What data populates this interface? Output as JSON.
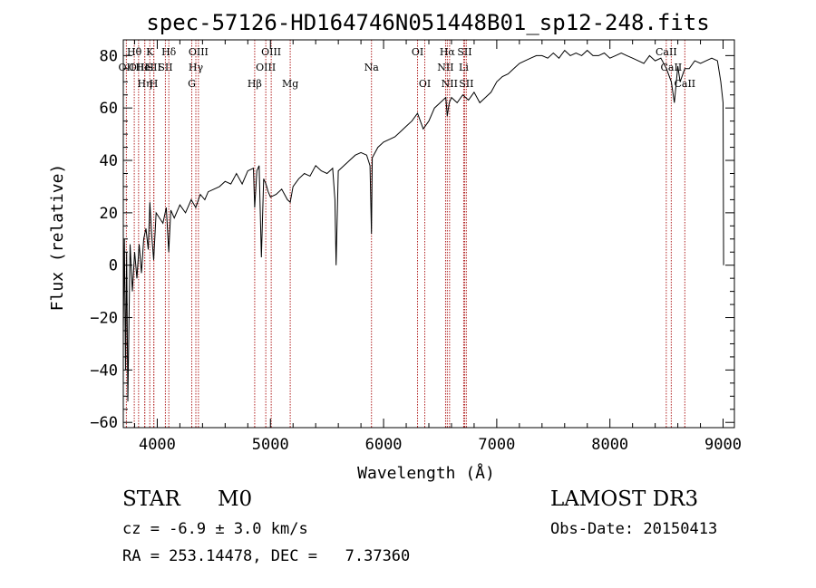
{
  "chart_data": {
    "type": "line",
    "title": "spec-57126-HD164746N051448B01_sp12-248.fits",
    "xlabel": "Wavelength (Å)",
    "ylabel": "Flux (relative)",
    "xlim": [
      3700,
      9100
    ],
    "ylim": [
      -62,
      86
    ],
    "xticks": [
      4000,
      5000,
      6000,
      7000,
      8000,
      9000
    ],
    "yticks": [
      -60,
      -40,
      -20,
      0,
      20,
      40,
      60,
      80
    ],
    "grid": false,
    "series": [
      {
        "name": "flux",
        "color": "#000000",
        "x": [
          3700,
          3710,
          3720,
          3730,
          3740,
          3760,
          3780,
          3800,
          3820,
          3840,
          3860,
          3880,
          3900,
          3920,
          3935,
          3950,
          3968,
          3990,
          4020,
          4050,
          4080,
          4101,
          4120,
          4150,
          4200,
          4250,
          4300,
          4340,
          4380,
          4420,
          4450,
          4500,
          4550,
          4600,
          4650,
          4700,
          4750,
          4800,
          4850,
          4861,
          4880,
          4900,
          4920,
          4940,
          4960,
          4980,
          5000,
          5050,
          5100,
          5150,
          5175,
          5200,
          5250,
          5300,
          5350,
          5400,
          5450,
          5500,
          5550,
          5570,
          5580,
          5600,
          5650,
          5700,
          5750,
          5800,
          5850,
          5880,
          5893,
          5900,
          5950,
          6000,
          6050,
          6100,
          6150,
          6200,
          6250,
          6300,
          6350,
          6400,
          6450,
          6500,
          6550,
          6563,
          6580,
          6600,
          6650,
          6700,
          6750,
          6800,
          6850,
          6900,
          6950,
          7000,
          7050,
          7100,
          7150,
          7200,
          7250,
          7300,
          7350,
          7400,
          7450,
          7500,
          7550,
          7600,
          7650,
          7700,
          7750,
          7800,
          7850,
          7900,
          7950,
          8000,
          8050,
          8100,
          8150,
          8200,
          8250,
          8300,
          8350,
          8400,
          8450,
          8500,
          8542,
          8570,
          8600,
          8620,
          8662,
          8700,
          8750,
          8800,
          8850,
          8900,
          8950,
          8980,
          9000,
          9005
        ],
        "y": [
          -25,
          10,
          -40,
          5,
          -52,
          8,
          -10,
          5,
          -5,
          8,
          -3,
          10,
          14,
          6,
          24,
          12,
          2,
          20,
          18,
          16,
          22,
          5,
          21,
          18,
          23,
          20,
          25,
          22,
          27,
          25,
          28,
          29,
          30,
          32,
          31,
          35,
          31,
          36,
          37,
          22,
          36,
          38,
          3,
          33,
          31,
          28,
          26,
          27,
          29,
          25,
          24,
          30,
          33,
          35,
          34,
          38,
          36,
          35,
          37,
          25,
          0,
          36,
          38,
          40,
          42,
          43,
          42,
          38,
          12,
          41,
          45,
          47,
          48,
          49,
          51,
          53,
          55,
          58,
          52,
          55,
          60,
          62,
          64,
          57,
          62,
          64,
          62,
          65,
          63,
          66,
          62,
          64,
          66,
          70,
          72,
          73,
          75,
          77,
          78,
          79,
          80,
          80,
          79,
          81,
          79,
          82,
          80,
          81,
          80,
          82,
          80,
          80,
          81,
          79,
          80,
          81,
          80,
          79,
          78,
          77,
          80,
          78,
          79,
          75,
          70,
          62,
          76,
          70,
          75,
          75,
          78,
          77,
          78,
          79,
          78,
          70,
          62,
          0
        ]
      }
    ],
    "lines": [
      {
        "name": "OII",
        "x": 3727,
        "row": 2
      },
      {
        "name": "Hθ",
        "x": 3797,
        "row": 1
      },
      {
        "name": "OIII",
        "x": 3835,
        "row": 2
      },
      {
        "name": "Hη",
        "x": 3889,
        "row": 3
      },
      {
        "name": "HeI",
        "x": 3890,
        "row": 2
      },
      {
        "name": "K",
        "x": 3934,
        "row": 1
      },
      {
        "name": "SII",
        "x": 3970,
        "row": 2
      },
      {
        "name": "H",
        "x": 3969,
        "row": 3
      },
      {
        "name": "Hδ",
        "x": 4102,
        "row": 1
      },
      {
        "name": "SII",
        "x": 4072,
        "row": 2
      },
      {
        "name": "OIII",
        "x": 4364,
        "row": 1
      },
      {
        "name": "Hγ",
        "x": 4341,
        "row": 2
      },
      {
        "name": "G",
        "x": 4305,
        "row": 3
      },
      {
        "name": "Hβ",
        "x": 4861,
        "row": 3
      },
      {
        "name": "OIII",
        "x": 5007,
        "row": 1
      },
      {
        "name": "OIII",
        "x": 4959,
        "row": 2
      },
      {
        "name": "Mg",
        "x": 5175,
        "row": 3
      },
      {
        "name": "Na",
        "x": 5893,
        "row": 2
      },
      {
        "name": "OI",
        "x": 6300,
        "row": 1
      },
      {
        "name": "OI",
        "x": 6364,
        "row": 3
      },
      {
        "name": "Hα",
        "x": 6563,
        "row": 1
      },
      {
        "name": "NII",
        "x": 6548,
        "row": 2
      },
      {
        "name": "NII",
        "x": 6583,
        "row": 3
      },
      {
        "name": "SII",
        "x": 6716,
        "row": 1
      },
      {
        "name": "Li",
        "x": 6708,
        "row": 2
      },
      {
        "name": "SII",
        "x": 6731,
        "row": 3
      },
      {
        "name": "CaII",
        "x": 8498,
        "row": 1
      },
      {
        "name": "CaII",
        "x": 8542,
        "row": 2
      },
      {
        "name": "CaII",
        "x": 8662,
        "row": 3
      }
    ]
  },
  "info": {
    "class": "STAR",
    "subclass": "M0",
    "survey": "LAMOST DR3",
    "cz": "cz = -6.9 ± 3.0 km/s",
    "obs_date": "Obs-Date: 20150413",
    "coords": "RA = 253.14478, DEC =   7.37360"
  }
}
